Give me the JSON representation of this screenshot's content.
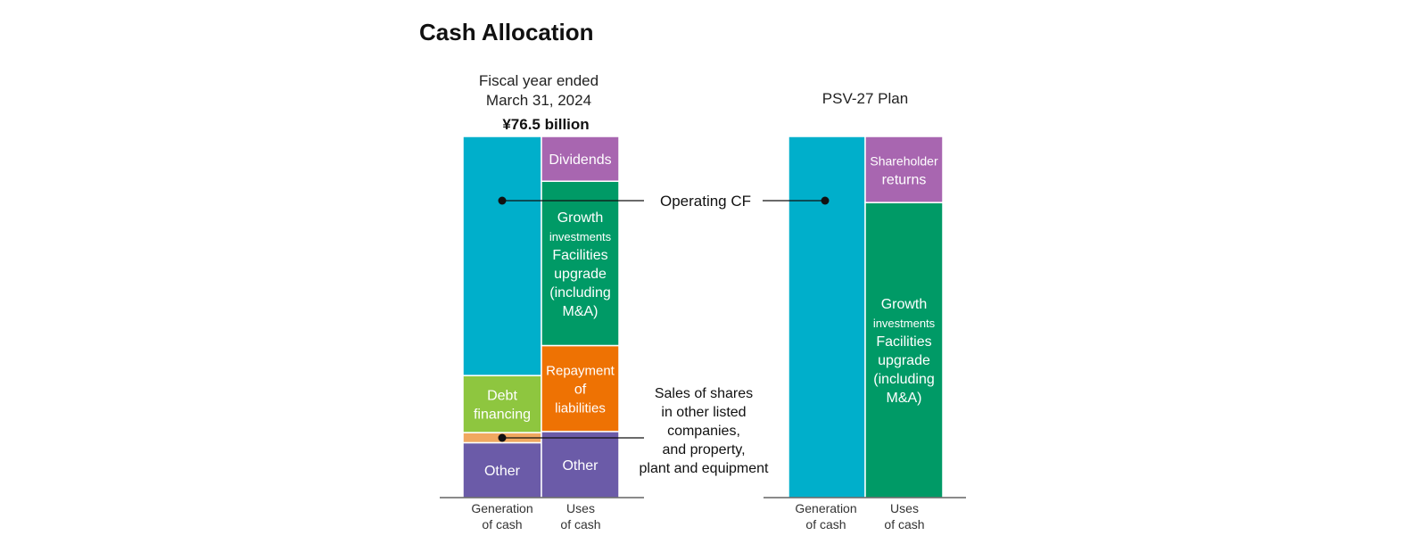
{
  "title": "Cash Allocation",
  "left_panel": {
    "header_line1": "Fiscal year ended",
    "header_line2": "March 31, 2024",
    "total": "¥76.5 billion",
    "generation_label_1": "Generation",
    "generation_label_2": "of cash",
    "uses_label_1": "Uses",
    "uses_label_2": "of cash"
  },
  "right_panel": {
    "header": "PSV-27 Plan",
    "generation_label_1": "Generation",
    "generation_label_2": "of cash",
    "uses_label_1": "Uses",
    "uses_label_2": "of cash"
  },
  "callouts": {
    "operating_cf": "Operating CF",
    "sales_line1": "Sales of shares",
    "sales_line2": "in other listed",
    "sales_line3": "companies,",
    "sales_line4": "and property,",
    "sales_line5": "plant and equipment"
  },
  "chart_data": [
    {
      "type": "bar",
      "stacked": true,
      "title": "Fiscal year ended March 31, 2024",
      "total": "¥76.5 billion",
      "unit": "share of total",
      "categories": [
        "Generation of cash",
        "Uses of cash"
      ],
      "stacks": [
        {
          "category": "Generation of cash",
          "segments": [
            {
              "name": "Other",
              "lines": [
                "Other"
              ],
              "share": 0.152,
              "color": "#6b5ba8"
            },
            {
              "name": "Sales of shares in other listed companies, and property, plant and equipment",
              "lines": [],
              "share": 0.028,
              "color": "#f0a860"
            },
            {
              "name": "Debt financing",
              "lines": [
                "Debt",
                "financing"
              ],
              "share": 0.158,
              "color": "#8ec63f"
            },
            {
              "name": "Operating CF",
              "lines": [],
              "share": 0.662,
              "color": "#00afcb"
            }
          ]
        },
        {
          "category": "Uses of cash",
          "segments": [
            {
              "name": "Other",
              "lines": [
                "Other"
              ],
              "share": 0.183,
              "color": "#6b5ba8"
            },
            {
              "name": "Repayment of liabilities",
              "lines": [
                "Repayment",
                "of",
                "liabilities"
              ],
              "share": 0.238,
              "color": "#ee7203"
            },
            {
              "name": "Growth investments Facilities upgrade (including M&A)",
              "lines": [
                "Growth",
                "investments",
                "Facilities",
                "upgrade",
                "(including",
                "M&A)"
              ],
              "share": 0.455,
              "color": "#009a66"
            },
            {
              "name": "Dividends",
              "lines": [
                "Dividends"
              ],
              "share": 0.124,
              "color": "#a866b0"
            }
          ]
        }
      ]
    },
    {
      "type": "bar",
      "stacked": true,
      "title": "PSV-27 Plan",
      "unit": "share of total",
      "categories": [
        "Generation of cash",
        "Uses of cash"
      ],
      "stacks": [
        {
          "category": "Generation of cash",
          "segments": [
            {
              "name": "Operating CF",
              "lines": [],
              "share": 1.0,
              "color": "#00afcb"
            }
          ]
        },
        {
          "category": "Uses of cash",
          "segments": [
            {
              "name": "Growth investments Facilities upgrade (including M&A)",
              "lines": [
                "Growth",
                "investments",
                "Facilities",
                "upgrade",
                "(including",
                "M&A)"
              ],
              "share": 0.817,
              "color": "#009a66"
            },
            {
              "name": "Shareholder returns",
              "lines": [
                "Shareholder",
                "returns"
              ],
              "share": 0.183,
              "color": "#a866b0"
            }
          ]
        }
      ]
    }
  ]
}
